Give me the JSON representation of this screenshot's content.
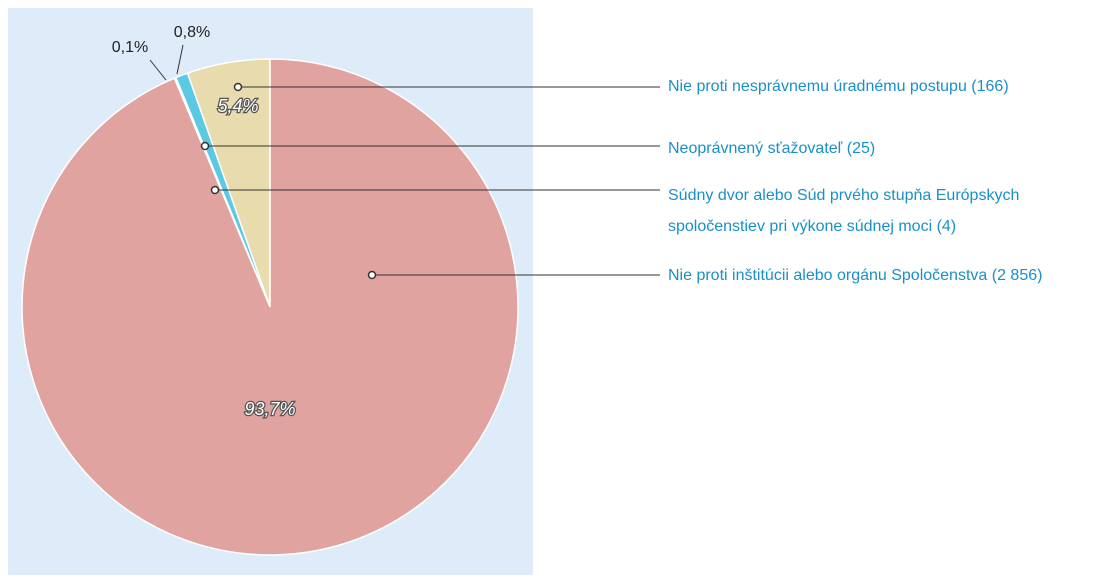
{
  "chart_data": {
    "type": "pie",
    "categories": [
      "Nie proti nesprávnemu úradnému postupu (166)",
      "Neoprávnený sťažovateľ (25)",
      "Súdny dvor alebo Súd prvého stupňa Európskych spoločenstiev pri výkone súdnej moci (4)",
      "Nie proti inštitúcii alebo orgánu Spoločenstva (2 856)"
    ],
    "values": [
      5.4,
      0.8,
      0.1,
      93.7
    ],
    "value_labels": [
      "5,4%",
      "0,8%",
      "0,1%",
      "93,7%"
    ],
    "colors": [
      "#e8dcae",
      "#5bc9e2",
      "#a9def0",
      "#e0a3a0"
    ]
  }
}
